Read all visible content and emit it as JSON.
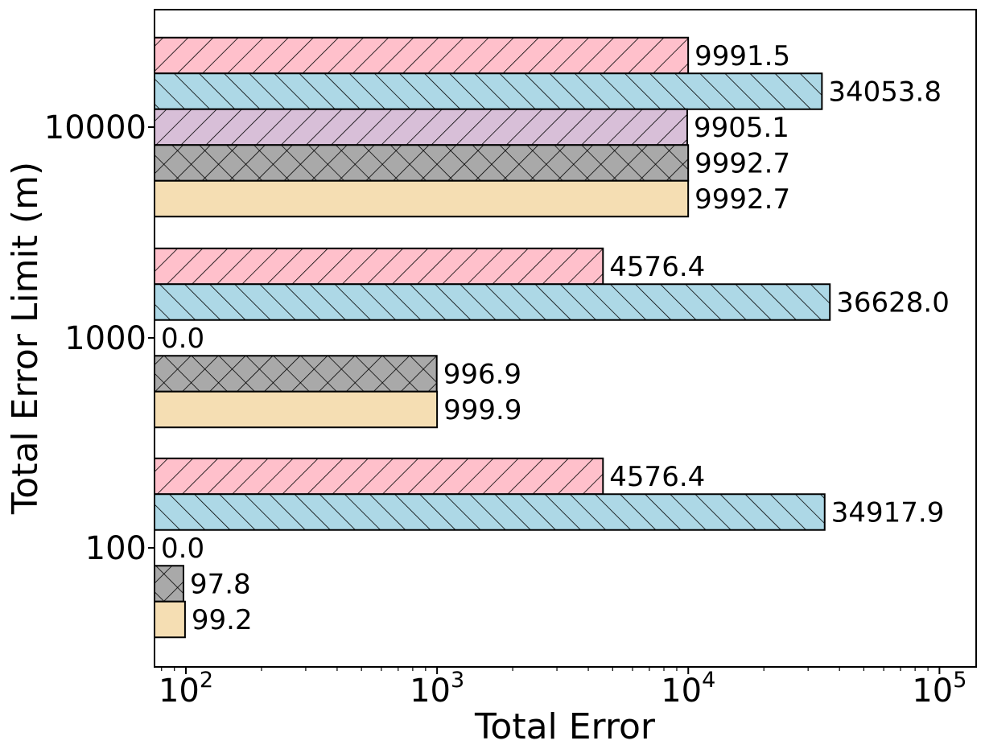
{
  "chart_data": {
    "type": "bar",
    "orientation": "horizontal",
    "xscale": "log",
    "xlim": [
      75,
      140000
    ],
    "x_ticks": [
      {
        "value": 100,
        "base": "10",
        "exp": "2"
      },
      {
        "value": 1000,
        "base": "10",
        "exp": "3"
      },
      {
        "value": 10000,
        "base": "10",
        "exp": "4"
      },
      {
        "value": 100000,
        "base": "10",
        "exp": "5"
      }
    ],
    "categories": [
      "100",
      "1000",
      "10000"
    ],
    "xlabel": "Total Error",
    "ylabel": "Total Error Limit (m)",
    "grid": false,
    "legend": "none",
    "series": [
      {
        "fill": "#ffc0cb",
        "hatch": "forward-diagonal",
        "values": [
          4576.4,
          4576.4,
          9991.5
        ],
        "labels": [
          "4576.4",
          "4576.4",
          "9991.5"
        ]
      },
      {
        "fill": "#add8e6",
        "hatch": "back-diagonal",
        "values": [
          34917.9,
          36628.0,
          34053.8
        ],
        "labels": [
          "34917.9",
          "36628.0",
          "34053.8"
        ]
      },
      {
        "fill": "#d8bfd8",
        "hatch": "forward-diagonal",
        "values": [
          0.0,
          0.0,
          9905.1
        ],
        "labels": [
          "0.0",
          "0.0",
          "9905.1"
        ]
      },
      {
        "fill": "#a9a9a9",
        "hatch": "crosshatch",
        "values": [
          97.8,
          996.9,
          9992.7
        ],
        "labels": [
          "97.8",
          "996.9",
          "9992.7"
        ]
      },
      {
        "fill": "#f5deb3",
        "hatch": "none",
        "values": [
          99.2,
          999.9,
          9992.7
        ],
        "labels": [
          "99.2",
          "999.9",
          "9992.7"
        ]
      }
    ]
  }
}
